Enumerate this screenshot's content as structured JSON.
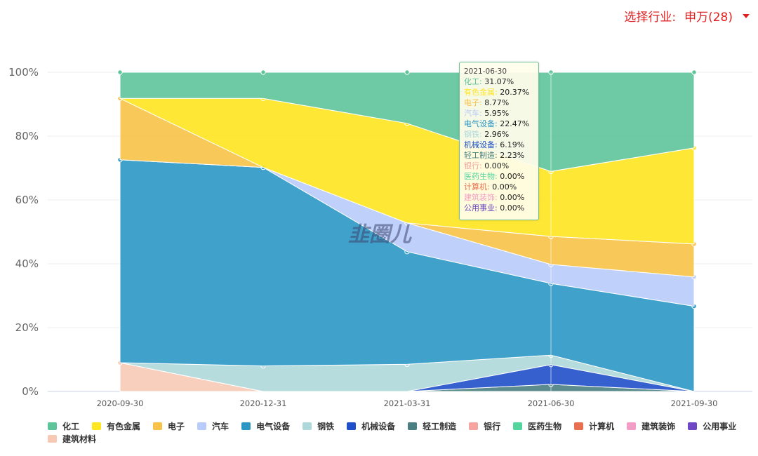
{
  "header": {
    "select_label": "选择行业:",
    "select_value": "申万(28)"
  },
  "colors": {
    "accent": "#e02020",
    "series": {
      "化工": "#5ec49a",
      "有色金属": "#ffe61f",
      "电子": "#f7c246",
      "汽车": "#b8cbfb",
      "电气设备": "#2b97c5",
      "钢铁": "#aed8d9",
      "机械设备": "#1f4fc9",
      "轻工制造": "#4a8082",
      "银行": "#f7a3a0",
      "医药生物": "#52d69e",
      "计算机": "#e8704f",
      "建筑装饰": "#f59cc6",
      "公用事业": "#7047c4",
      "建筑材料": "#f7c9b5"
    }
  },
  "chart_data": {
    "type": "area",
    "stacked": true,
    "percent": true,
    "categories": [
      "2020-09-30",
      "2020-12-31",
      "2021-03-31",
      "2021-06-30",
      "2021-09-30"
    ],
    "y_ticks": [
      "0%",
      "20%",
      "40%",
      "60%",
      "80%",
      "100%"
    ],
    "ylim": [
      0,
      100
    ],
    "series": [
      {
        "name": "建筑材料",
        "values": [
          9,
          0,
          0,
          0,
          0
        ]
      },
      {
        "name": "公用事业",
        "values": [
          0,
          0,
          0,
          0,
          0
        ]
      },
      {
        "name": "建筑装饰",
        "values": [
          0,
          0,
          0,
          0,
          0
        ]
      },
      {
        "name": "计算机",
        "values": [
          0,
          0,
          0,
          0,
          0
        ]
      },
      {
        "name": "医药生物",
        "values": [
          0,
          0,
          0,
          0,
          0
        ]
      },
      {
        "name": "银行",
        "values": [
          0,
          0,
          0,
          0,
          0
        ]
      },
      {
        "name": "轻工制造",
        "values": [
          0,
          0,
          0,
          2.23,
          0
        ]
      },
      {
        "name": "机械设备",
        "values": [
          0,
          0,
          0,
          6.19,
          0
        ]
      },
      {
        "name": "钢铁",
        "values": [
          0,
          8,
          8.5,
          2.96,
          0
        ]
      },
      {
        "name": "电气设备",
        "values": [
          63.6,
          62.2,
          35.3,
          22.47,
          26.7
        ]
      },
      {
        "name": "汽车",
        "values": [
          0,
          0,
          9,
          5.95,
          9.2
        ]
      },
      {
        "name": "电子",
        "values": [
          19.2,
          0,
          0,
          8.77,
          10.3
        ]
      },
      {
        "name": "有色金属",
        "values": [
          0,
          21.6,
          31.2,
          20.37,
          30.1
        ]
      },
      {
        "name": "化工",
        "values": [
          8.2,
          8.2,
          16,
          31.07,
          23.7
        ]
      }
    ],
    "legend": [
      "化工",
      "有色金属",
      "电子",
      "汽车",
      "电气设备",
      "钢铁",
      "机械设备",
      "轻工制造",
      "银行",
      "医药生物",
      "计算机",
      "建筑装饰",
      "公用事业",
      "建筑材料"
    ],
    "tooltip": {
      "date": "2021-06-30",
      "rows": [
        {
          "name": "化工",
          "value": "31.07%"
        },
        {
          "name": "有色金属",
          "value": "20.37%"
        },
        {
          "name": "电子",
          "value": "8.77%"
        },
        {
          "name": "汽车",
          "value": "5.95%"
        },
        {
          "name": "电气设备",
          "value": "22.47%"
        },
        {
          "name": "钢铁",
          "value": "2.96%"
        },
        {
          "name": "机械设备",
          "value": "6.19%"
        },
        {
          "name": "轻工制造",
          "value": "2.23%"
        },
        {
          "name": "银行",
          "value": "0.00%"
        },
        {
          "name": "医药生物",
          "value": "0.00%"
        },
        {
          "name": "计算机",
          "value": "0.00%"
        },
        {
          "name": "建筑装饰",
          "value": "0.00%"
        },
        {
          "name": "公用事业",
          "value": "0.00%"
        }
      ]
    },
    "watermark": "韭圈儿"
  }
}
